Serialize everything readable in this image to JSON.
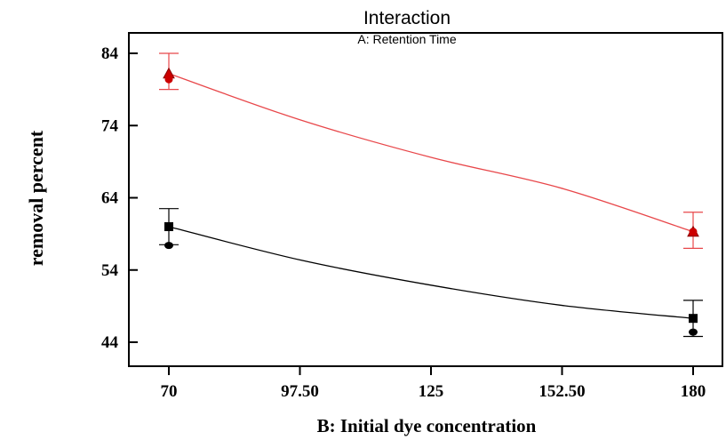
{
  "chart_data": {
    "type": "line",
    "title": "Interaction",
    "subtitle": "A: Retention Time",
    "xlabel": "B: Initial dye concentration",
    "ylabel": "removal percent",
    "xlim": [
      70,
      180
    ],
    "ylim": [
      42,
      86
    ],
    "xticks": [
      70,
      97.5,
      125,
      152.5,
      180
    ],
    "xtick_labels": [
      "70",
      "97.50",
      "125",
      "152.50",
      "180"
    ],
    "yticks": [
      44,
      54,
      64,
      74,
      84
    ],
    "ytick_labels": [
      "44",
      "54",
      "64",
      "74",
      "84"
    ],
    "grid": false,
    "series": [
      {
        "color": "#e8474a",
        "marker": "triangle",
        "curve": {
          "x": [
            70,
            97.5,
            125,
            152.5,
            180
          ],
          "y": [
            81.2,
            74.8,
            69.6,
            65.3,
            59.3
          ]
        },
        "points": [
          {
            "x": 70,
            "y": 81.2,
            "low": 79.0,
            "high": 84.0,
            "observed": 80.4
          },
          {
            "x": 180,
            "y": 59.3,
            "low": 57.0,
            "high": 62.0,
            "observed": 59.3
          }
        ]
      },
      {
        "color": "#000000",
        "marker": "square",
        "curve": {
          "x": [
            70,
            97.5,
            125,
            152.5,
            180
          ],
          "y": [
            60.0,
            55.4,
            51.9,
            49.1,
            47.3
          ]
        },
        "points": [
          {
            "x": 70,
            "y": 60.0,
            "low": 57.5,
            "high": 62.5,
            "observed": 57.4
          },
          {
            "x": 180,
            "y": 47.3,
            "low": 44.8,
            "high": 49.8,
            "observed": 45.4
          }
        ]
      }
    ]
  }
}
